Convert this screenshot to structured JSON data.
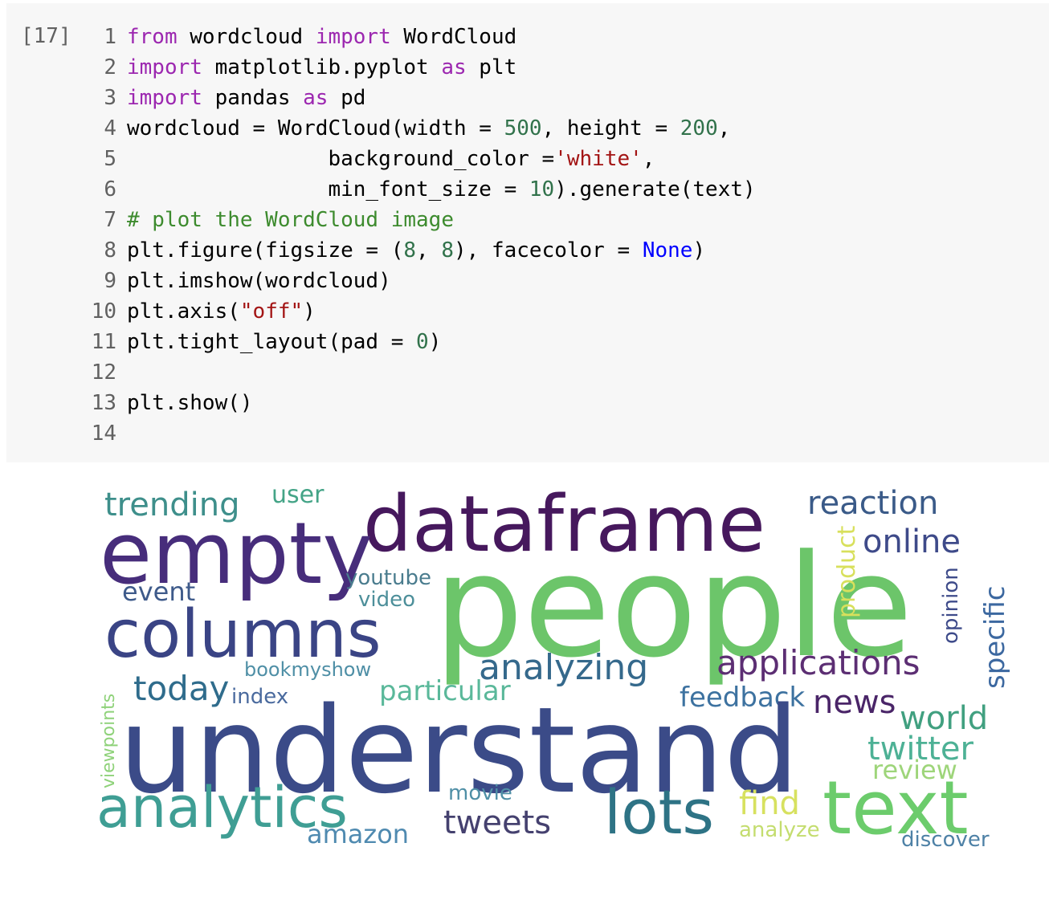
{
  "cell": {
    "prompt": "[17]",
    "lines": [
      {
        "n": "1",
        "tokens": [
          {
            "t": "from",
            "c": "kw"
          },
          {
            "t": " wordcloud "
          },
          {
            "t": "import",
            "c": "kw"
          },
          {
            "t": " WordCloud"
          }
        ]
      },
      {
        "n": "2",
        "tokens": [
          {
            "t": "import",
            "c": "kw"
          },
          {
            "t": " matplotlib.pyplot "
          },
          {
            "t": "as",
            "c": "kw"
          },
          {
            "t": " plt"
          }
        ]
      },
      {
        "n": "3",
        "tokens": [
          {
            "t": "import",
            "c": "kw"
          },
          {
            "t": " pandas "
          },
          {
            "t": "as",
            "c": "kw"
          },
          {
            "t": " pd"
          }
        ]
      },
      {
        "n": "4",
        "tokens": [
          {
            "t": "wordcloud = WordCloud(width = "
          },
          {
            "t": "500",
            "c": "num"
          },
          {
            "t": ", height = "
          },
          {
            "t": "200",
            "c": "num"
          },
          {
            "t": ","
          }
        ]
      },
      {
        "n": "5",
        "tokens": [
          {
            "t": "                background_color ="
          },
          {
            "t": "'white'",
            "c": "str"
          },
          {
            "t": ","
          }
        ]
      },
      {
        "n": "6",
        "tokens": [
          {
            "t": "                min_font_size = "
          },
          {
            "t": "10",
            "c": "num"
          },
          {
            "t": ").generate(text)"
          }
        ]
      },
      {
        "n": "7",
        "tokens": [
          {
            "t": "# plot the WordCloud image",
            "c": "com"
          }
        ]
      },
      {
        "n": "8",
        "tokens": [
          {
            "t": "plt.figure(figsize = ("
          },
          {
            "t": "8",
            "c": "num"
          },
          {
            "t": ", "
          },
          {
            "t": "8",
            "c": "num"
          },
          {
            "t": "), facecolor = "
          },
          {
            "t": "None",
            "c": "const"
          },
          {
            "t": ")"
          }
        ]
      },
      {
        "n": "9",
        "tokens": [
          {
            "t": "plt.imshow(wordcloud)"
          }
        ]
      },
      {
        "n": "10",
        "tokens": [
          {
            "t": "plt.axis("
          },
          {
            "t": "\"off\"",
            "c": "str"
          },
          {
            "t": ")"
          }
        ]
      },
      {
        "n": "11",
        "tokens": [
          {
            "t": "plt.tight_layout(pad = "
          },
          {
            "t": "0",
            "c": "num"
          },
          {
            "t": ")"
          }
        ]
      },
      {
        "n": "12",
        "tokens": []
      },
      {
        "n": "13",
        "tokens": [
          {
            "t": "plt.show()"
          }
        ]
      },
      {
        "n": "14",
        "tokens": []
      }
    ]
  },
  "output": {
    "words": [
      {
        "text": "trending",
        "color": "#3e8f8b"
      },
      {
        "text": "user",
        "color": "#44a487"
      },
      {
        "text": "dataframe",
        "color": "#46185d"
      },
      {
        "text": "reaction",
        "color": "#3a5a88"
      },
      {
        "text": "empty",
        "color": "#472d7b"
      },
      {
        "text": "online",
        "color": "#3e4a89"
      },
      {
        "text": "youtube",
        "color": "#4a7c8e"
      },
      {
        "text": "video",
        "color": "#4d8f9a"
      },
      {
        "text": "event",
        "color": "#3e5a8a"
      },
      {
        "text": "people",
        "color": "#6cc56a"
      },
      {
        "text": "product",
        "color": "#d8e05c"
      },
      {
        "text": "opinion",
        "color": "#3e4b8a"
      },
      {
        "text": "specific",
        "color": "#3c68a0"
      },
      {
        "text": "columns",
        "color": "#3a4485"
      },
      {
        "text": "applications",
        "color": "#5c2e73"
      },
      {
        "text": "analyzing",
        "color": "#35698c"
      },
      {
        "text": "bookmyshow",
        "color": "#4f8fa6"
      },
      {
        "text": "today",
        "color": "#2f6c8c"
      },
      {
        "text": "index",
        "color": "#4a6a9e"
      },
      {
        "text": "particular",
        "color": "#5ab89a"
      },
      {
        "text": "viewpoints",
        "color": "#8fd27a"
      },
      {
        "text": "feedback",
        "color": "#3d72a0"
      },
      {
        "text": "news",
        "color": "#4a2568"
      },
      {
        "text": "understand",
        "color": "#3b4b88"
      },
      {
        "text": "world",
        "color": "#41a080"
      },
      {
        "text": "twitter",
        "color": "#4db195"
      },
      {
        "text": "review",
        "color": "#9ed57a"
      },
      {
        "text": "analytics",
        "color": "#3f9e94"
      },
      {
        "text": "movie",
        "color": "#4f8fa6"
      },
      {
        "text": "lots",
        "color": "#2e7385"
      },
      {
        "text": "find",
        "color": "#d7e15f"
      },
      {
        "text": "text",
        "color": "#6ccc6c"
      },
      {
        "text": "tweets",
        "color": "#45416f"
      },
      {
        "text": "amazon",
        "color": "#4f8ab0"
      },
      {
        "text": "analyze",
        "color": "#c4dd6f"
      },
      {
        "text": "discover",
        "color": "#4e81a6"
      }
    ]
  }
}
